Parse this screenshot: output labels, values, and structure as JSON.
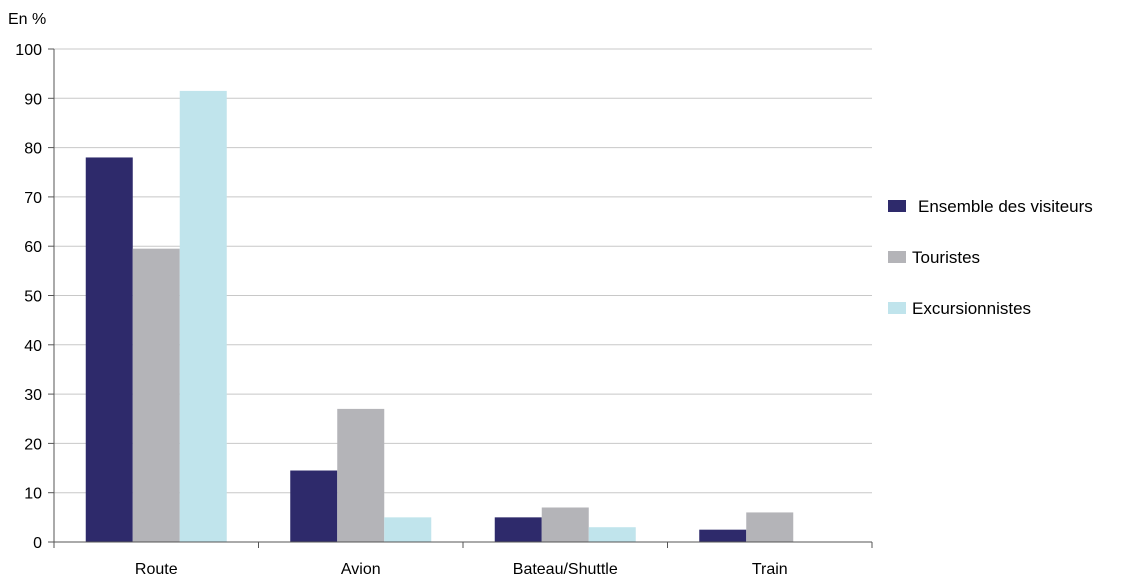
{
  "chart_data": {
    "type": "bar",
    "unit_label": "En %",
    "categories": [
      "Route",
      "Avion",
      "Bateau/Shuttle",
      "Train"
    ],
    "series": [
      {
        "name": "Ensemble des visiteurs",
        "color": "#2e2a6b",
        "values": [
          78,
          14.5,
          5,
          2.5
        ]
      },
      {
        "name": "Touristes",
        "color": "#b4b4b8",
        "values": [
          59.5,
          27,
          7,
          6
        ]
      },
      {
        "name": "Excursionnistes",
        "color": "#c0e4ec",
        "values": [
          91.5,
          5,
          3,
          0
        ]
      }
    ],
    "ylim": [
      0,
      100
    ],
    "yticks": [
      0,
      10,
      20,
      30,
      40,
      50,
      60,
      70,
      80,
      90,
      100
    ],
    "grid": true,
    "legend_position": "right"
  }
}
